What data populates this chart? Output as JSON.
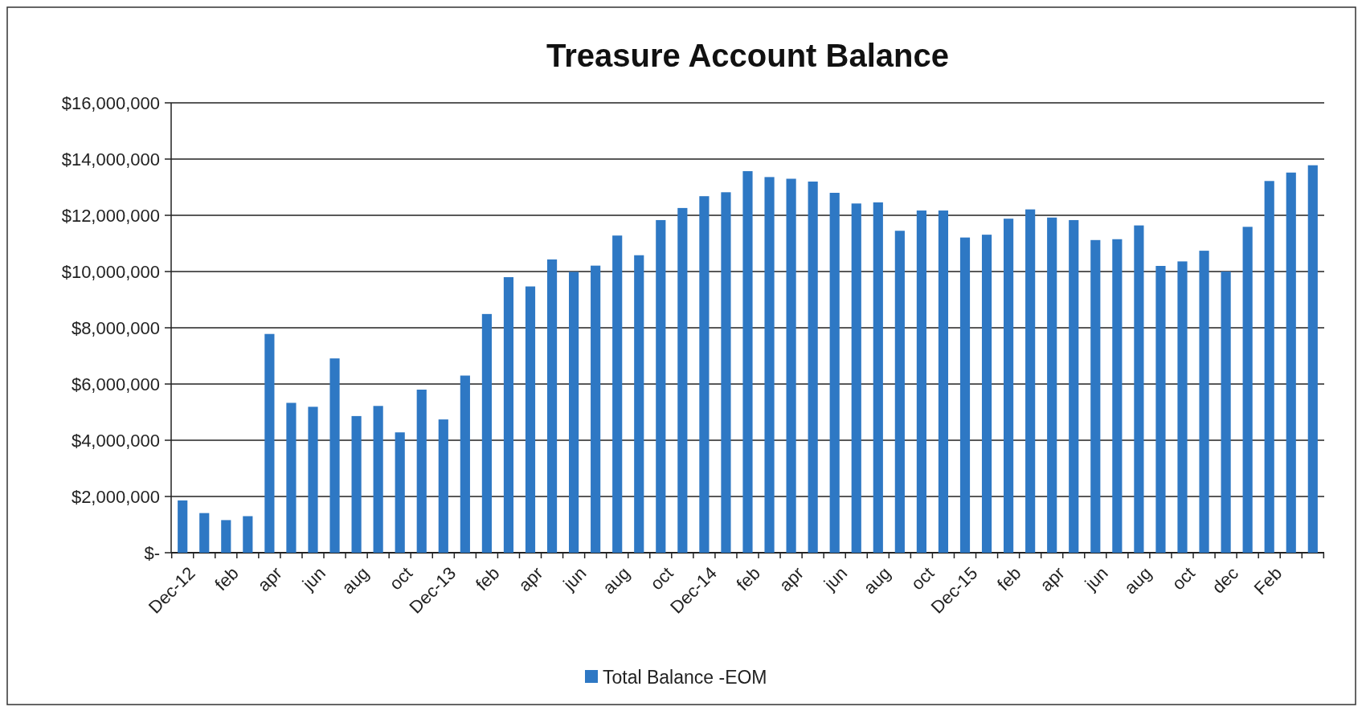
{
  "chart_data": {
    "type": "bar",
    "title": "Treasure Account Balance",
    "categories": [
      "Dec-12",
      null,
      "feb",
      null,
      "apr",
      null,
      "jun",
      null,
      "aug",
      null,
      "oct",
      null,
      "Dec-13",
      null,
      "feb",
      null,
      "apr",
      null,
      "jun",
      null,
      "aug",
      null,
      "oct",
      null,
      "Dec-14",
      null,
      "feb",
      null,
      "apr",
      null,
      "jun",
      null,
      "aug",
      null,
      "oct",
      null,
      "Dec-15",
      null,
      "feb",
      null,
      "apr",
      null,
      "jun",
      null,
      "aug",
      null,
      "oct",
      null,
      "dec",
      null,
      "Feb",
      null,
      null
    ],
    "series": [
      {
        "name": "Total Balance -EOM",
        "color": "#2e78c4",
        "values": [
          1860000,
          1410000,
          1160000,
          1300000,
          7780000,
          5330000,
          5190000,
          6910000,
          4860000,
          5220000,
          4280000,
          5800000,
          4740000,
          6300000,
          8490000,
          9800000,
          9470000,
          10430000,
          9990000,
          10210000,
          11280000,
          10580000,
          11830000,
          12260000,
          12680000,
          12820000,
          13570000,
          13360000,
          13300000,
          13200000,
          12800000,
          12420000,
          12460000,
          11450000,
          12170000,
          12170000,
          11210000,
          11310000,
          11880000,
          12210000,
          11920000,
          11830000,
          11120000,
          11150000,
          11640000,
          10200000,
          10360000,
          10740000,
          10000000,
          11590000,
          13220000,
          13520000,
          13780000
        ]
      }
    ],
    "ylim": [
      0,
      16000000
    ],
    "yticks": [
      {
        "value": 0,
        "label": "$-"
      },
      {
        "value": 2000000,
        "label": "$2,000,000"
      },
      {
        "value": 4000000,
        "label": "$4,000,000"
      },
      {
        "value": 6000000,
        "label": "$6,000,000"
      },
      {
        "value": 8000000,
        "label": "$8,000,000"
      },
      {
        "value": 10000000,
        "label": "$10,000,000"
      },
      {
        "value": 12000000,
        "label": "$12,000,000"
      },
      {
        "value": 14000000,
        "label": "$14,000,000"
      },
      {
        "value": 16000000,
        "label": "$16,000,000"
      }
    ],
    "grid": "y",
    "legend": "bottom"
  }
}
